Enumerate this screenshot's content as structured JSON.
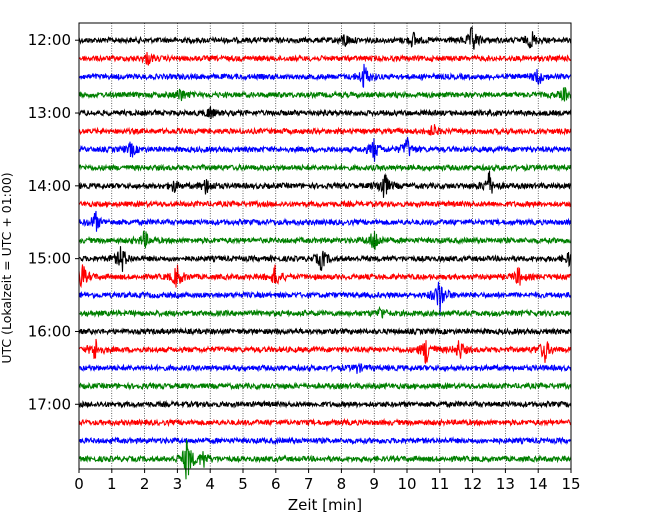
{
  "chart_data": {
    "type": "line",
    "title": "",
    "xlabel": "Zeit  [min]",
    "ylabel": "UTC (Lokalzeit = UTC + 01:00)",
    "xlim": [
      0,
      15
    ],
    "x_ticks": [
      "0",
      "1",
      "2",
      "3",
      "4",
      "5",
      "6",
      "7",
      "8",
      "9",
      "10",
      "11",
      "12",
      "13",
      "14",
      "15"
    ],
    "y_ticks": [
      "12:00",
      "13:00",
      "14:00",
      "15:00",
      "16:00",
      "17:00"
    ],
    "grid": "vertical dotted",
    "trace_start_times": [
      "12:00",
      "12:15",
      "12:30",
      "12:45",
      "13:00",
      "13:15",
      "13:30",
      "13:45",
      "14:00",
      "14:15",
      "14:30",
      "14:45",
      "15:00",
      "15:15",
      "15:30",
      "15:45",
      "16:00",
      "16:15",
      "16:30",
      "16:45",
      "17:00",
      "17:15",
      "17:30",
      "17:45"
    ],
    "trace_colors": [
      "#000000",
      "#ff0000",
      "#0000ff",
      "#008000"
    ],
    "events": [
      {
        "row": 0,
        "t": 12.0,
        "amp": 10
      },
      {
        "row": 0,
        "t": 13.8,
        "amp": 6
      },
      {
        "row": 0,
        "t": 8.1,
        "amp": 5
      },
      {
        "row": 0,
        "t": 10.2,
        "amp": 5
      },
      {
        "row": 1,
        "t": 2.1,
        "amp": 4
      },
      {
        "row": 2,
        "t": 8.7,
        "amp": 9
      },
      {
        "row": 2,
        "t": 14.0,
        "amp": 6
      },
      {
        "row": 3,
        "t": 3.1,
        "amp": 5
      },
      {
        "row": 3,
        "t": 14.8,
        "amp": 4
      },
      {
        "row": 4,
        "t": 4.0,
        "amp": 4
      },
      {
        "row": 5,
        "t": 10.8,
        "amp": 4
      },
      {
        "row": 6,
        "t": 9.0,
        "amp": 8
      },
      {
        "row": 6,
        "t": 10.0,
        "amp": 8
      },
      {
        "row": 6,
        "t": 1.6,
        "amp": 5
      },
      {
        "row": 8,
        "t": 9.3,
        "amp": 11
      },
      {
        "row": 8,
        "t": 12.5,
        "amp": 10
      },
      {
        "row": 8,
        "t": 3.9,
        "amp": 6
      },
      {
        "row": 8,
        "t": 2.9,
        "amp": 4
      },
      {
        "row": 10,
        "t": 0.5,
        "amp": 7
      },
      {
        "row": 11,
        "t": 2.0,
        "amp": 6
      },
      {
        "row": 11,
        "t": 9.0,
        "amp": 9
      },
      {
        "row": 12,
        "t": 1.3,
        "amp": 10
      },
      {
        "row": 12,
        "t": 7.4,
        "amp": 8
      },
      {
        "row": 12,
        "t": 15.0,
        "amp": 7
      },
      {
        "row": 13,
        "t": 0.1,
        "amp": 9
      },
      {
        "row": 13,
        "t": 3.0,
        "amp": 9
      },
      {
        "row": 13,
        "t": 6.0,
        "amp": 8
      },
      {
        "row": 13,
        "t": 13.4,
        "amp": 6
      },
      {
        "row": 14,
        "t": 11.0,
        "amp": 14
      },
      {
        "row": 15,
        "t": 9.2,
        "amp": 4
      },
      {
        "row": 17,
        "t": 0.5,
        "amp": 8
      },
      {
        "row": 17,
        "t": 10.6,
        "amp": 11
      },
      {
        "row": 17,
        "t": 11.6,
        "amp": 7
      },
      {
        "row": 17,
        "t": 14.2,
        "amp": 9
      },
      {
        "row": 18,
        "t": 8.5,
        "amp": 3
      },
      {
        "row": 23,
        "t": 3.3,
        "amp": 16
      },
      {
        "row": 23,
        "t": 3.8,
        "amp": 6
      }
    ]
  }
}
